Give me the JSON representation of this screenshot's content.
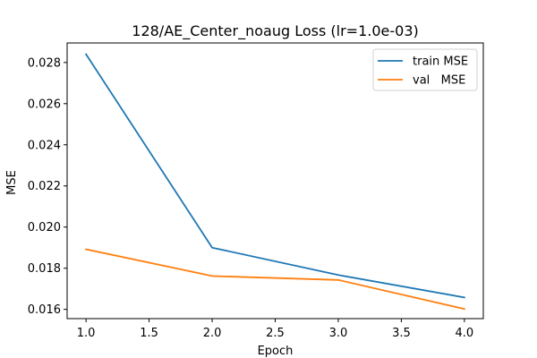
{
  "chart_data": {
    "type": "line",
    "title": "128/AE_Center_noaug Loss (lr=1.0e-03)",
    "xlabel": "Epoch",
    "ylabel": "MSE",
    "xlim": [
      0.85,
      4.15
    ],
    "ylim": [
      0.01555,
      0.02895
    ],
    "x_ticks": [
      1.0,
      1.5,
      2.0,
      2.5,
      3.0,
      3.5,
      4.0
    ],
    "x_tick_labels": [
      "1.0",
      "1.5",
      "2.0",
      "2.5",
      "3.0",
      "3.5",
      "4.0"
    ],
    "y_ticks": [
      0.016,
      0.018,
      0.02,
      0.022,
      0.024,
      0.026,
      0.028
    ],
    "y_tick_labels": [
      "0.016",
      "0.018",
      "0.020",
      "0.022",
      "0.024",
      "0.026",
      "0.028"
    ],
    "x": [
      1,
      2,
      3,
      4
    ],
    "series": [
      {
        "name": "train MSE",
        "color": "#1f77b4",
        "values": [
          0.0284,
          0.019,
          0.01767,
          0.01658
        ]
      },
      {
        "name": "val   MSE",
        "color": "#ff7f0e",
        "values": [
          0.01892,
          0.01762,
          0.01743,
          0.01602
        ]
      }
    ],
    "grid": false,
    "legend_position": "top-right"
  }
}
